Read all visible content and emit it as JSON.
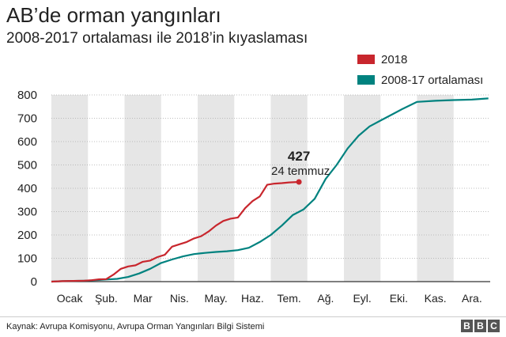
{
  "title": "AB’de orman yangınları",
  "subtitle": "2008-2017 ortalaması ile 2018’in kıyaslaması",
  "source": "Kaynak: Avrupa Komisyonu, Avrupa Orman Yangınları Bilgi Sistemi",
  "logo": [
    "B",
    "B",
    "C"
  ],
  "chart_data": {
    "type": "line",
    "title": "AB’de orman yangınları",
    "subtitle": "2008-2017 ortalaması ile 2018’in kıyaslaması",
    "xlabel": "",
    "ylabel": "",
    "x_unit": "month",
    "xlim": [
      0,
      12
    ],
    "ylim": [
      0,
      800
    ],
    "yticks": [
      0,
      100,
      200,
      300,
      400,
      500,
      600,
      700,
      800
    ],
    "grid": true,
    "shaded_alternate_months": true,
    "legend_position": "top-right",
    "months": [
      "Ocak",
      "Şub.",
      "Mar",
      "Nis.",
      "May.",
      "Haz.",
      "Tem.",
      "Ağ.",
      "Eyl.",
      "Eki.",
      "Kas.",
      "Ara."
    ],
    "series": [
      {
        "name": "2018",
        "color": "#c8262d",
        "x": [
          0.0,
          0.3,
          0.6,
          0.9,
          1.1,
          1.3,
          1.5,
          1.7,
          1.9,
          2.1,
          2.3,
          2.5,
          2.7,
          2.9,
          3.1,
          3.3,
          3.5,
          3.7,
          3.9,
          4.1,
          4.3,
          4.5,
          4.7,
          4.9,
          5.1,
          5.3,
          5.5,
          5.7,
          5.9,
          6.1,
          6.3,
          6.5,
          6.77
        ],
        "values": [
          0,
          2,
          3,
          4,
          6,
          10,
          11,
          30,
          55,
          65,
          70,
          85,
          90,
          105,
          115,
          150,
          160,
          170,
          185,
          195,
          215,
          240,
          260,
          270,
          275,
          315,
          345,
          365,
          415,
          420,
          422,
          425,
          427
        ]
      },
      {
        "name": "2008-17 ortalaması",
        "color": "#00827f",
        "x": [
          0.0,
          0.3,
          0.6,
          0.9,
          1.2,
          1.5,
          1.8,
          2.1,
          2.4,
          2.7,
          3.0,
          3.3,
          3.6,
          3.9,
          4.2,
          4.5,
          4.8,
          5.1,
          5.4,
          5.7,
          6.0,
          6.3,
          6.6,
          6.9,
          7.2,
          7.5,
          7.8,
          8.1,
          8.4,
          8.7,
          9.0,
          9.3,
          9.6,
          10.0,
          10.5,
          11.0,
          11.5,
          11.95
        ],
        "values": [
          0,
          2,
          3,
          4,
          6,
          9,
          12,
          20,
          35,
          55,
          80,
          95,
          108,
          118,
          123,
          127,
          130,
          135,
          145,
          170,
          200,
          240,
          285,
          310,
          355,
          440,
          500,
          570,
          625,
          665,
          690,
          715,
          740,
          770,
          775,
          778,
          780,
          785
        ]
      }
    ],
    "annotations": [
      {
        "series": "2018",
        "x": 6.77,
        "y": 427,
        "value_label": "427",
        "date_label": "24 temmuz"
      }
    ]
  }
}
